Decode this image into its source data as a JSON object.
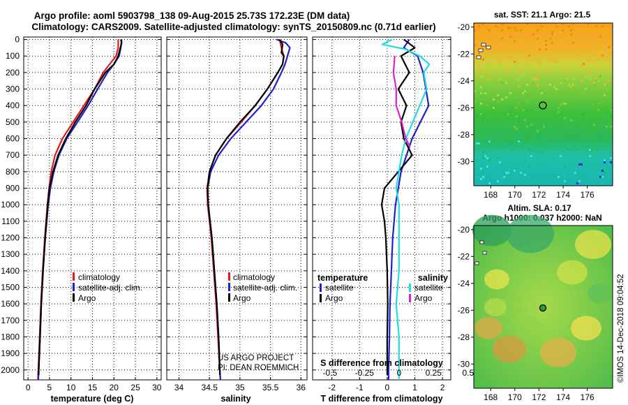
{
  "header": {
    "line1": "Argo profile: aoml 5903798_138 09-Aug-2015 25.73S 172.23E (DM data)",
    "line2": "Climatology: CARS2009. Satellite-adjusted climatology: synTS_20150809.nc (0.71d earlier)"
  },
  "depth_ticks": [
    "0",
    "100",
    "200",
    "300",
    "400",
    "500",
    "600",
    "700",
    "800",
    "900",
    "1000",
    "1100",
    "1200",
    "1300",
    "1400",
    "1500",
    "1600",
    "1700",
    "1800",
    "1900",
    "2000"
  ],
  "colors": {
    "climatology": "#e41a1c",
    "satellite": "#1f1fd0",
    "argo": "#000000",
    "sat_salinity": "#22dde0",
    "argo_salinity": "#e020d0"
  },
  "chart_data": [
    {
      "type": "line",
      "xlabel": "temperature (deg C)",
      "ylabel": "",
      "xlim": [
        -1,
        31
      ],
      "ylim": [
        2060,
        -15
      ],
      "xticks": [
        "0",
        "5",
        "10",
        "15",
        "20",
        "25",
        "30"
      ],
      "legend": [
        {
          "label": "climatology",
          "color": "#e41a1c"
        },
        {
          "label": "satellite-adj. clim.",
          "color": "#1f1fd0"
        },
        {
          "label": "Argo",
          "color": "#000000"
        }
      ],
      "series": [
        {
          "name": "climatology",
          "color": "#e41a1c",
          "depth": [
            0,
            50,
            100,
            150,
            200,
            300,
            400,
            500,
            600,
            700,
            800,
            900,
            1000,
            1200,
            1400,
            1600,
            1800,
            2000,
            2060
          ],
          "values": [
            21.0,
            21.0,
            20.5,
            19.0,
            17.5,
            15.5,
            13.0,
            10.5,
            8.0,
            6.3,
            5.4,
            4.9,
            4.5,
            3.9,
            3.4,
            3.0,
            2.7,
            2.4,
            2.3
          ]
        },
        {
          "name": "satellite-adj. clim.",
          "color": "#1f1fd0",
          "depth": [
            0,
            50,
            100,
            150,
            200,
            300,
            400,
            500,
            600,
            700,
            800,
            900,
            1000,
            1200,
            1400,
            1600,
            1800,
            2000,
            2060
          ],
          "values": [
            21.8,
            21.6,
            21.2,
            20.0,
            18.5,
            16.2,
            14.0,
            11.5,
            9.0,
            7.2,
            6.0,
            5.2,
            4.7,
            4.0,
            3.5,
            3.1,
            2.8,
            2.5,
            2.4
          ]
        },
        {
          "name": "Argo",
          "color": "#000000",
          "depth": [
            0,
            20,
            50,
            100,
            150,
            200,
            300,
            400,
            500,
            600,
            700,
            800,
            900,
            1000,
            1200,
            1400,
            1600,
            1800,
            2000,
            2030
          ],
          "values": [
            21.6,
            21.8,
            21.5,
            21.0,
            20.0,
            18.0,
            15.5,
            13.5,
            11.0,
            8.8,
            7.0,
            5.8,
            5.0,
            4.6,
            4.0,
            3.5,
            3.1,
            2.8,
            2.5,
            2.5
          ]
        }
      ]
    },
    {
      "type": "line",
      "xlabel": "salinity",
      "ylabel": "",
      "xlim": [
        33.8,
        36.1
      ],
      "ylim": [
        2060,
        -15
      ],
      "xticks": [
        "34",
        "34.5",
        "35",
        "35.5",
        "36"
      ],
      "legend": [
        {
          "label": "climatology",
          "color": "#e41a1c"
        },
        {
          "label": "satellite-adj. clim.",
          "color": "#1f1fd0"
        },
        {
          "label": "Argo",
          "color": "#000000"
        }
      ],
      "annotations": [
        "US ARGO PROJECT",
        "PI: DEAN ROEMMICH"
      ],
      "series": [
        {
          "name": "climatology",
          "color": "#e41a1c",
          "depth": [
            0,
            50,
            100,
            150,
            200,
            300,
            400,
            500,
            600,
            700,
            800,
            900,
            1000,
            1100,
            1200,
            1400,
            1600,
            1800,
            2000,
            2060
          ],
          "values": [
            35.65,
            35.68,
            35.72,
            35.7,
            35.62,
            35.45,
            35.25,
            35.02,
            34.78,
            34.6,
            34.5,
            34.46,
            34.47,
            34.5,
            34.53,
            34.57,
            34.61,
            34.64,
            34.67,
            34.68
          ]
        },
        {
          "name": "satellite-adj. clim.",
          "color": "#1f1fd0",
          "depth": [
            0,
            20,
            50,
            100,
            150,
            200,
            300,
            400,
            500,
            600,
            700,
            800,
            900,
            1000,
            1100,
            1200,
            1400,
            1600,
            1800,
            2000,
            2060
          ],
          "values": [
            35.6,
            35.75,
            35.82,
            35.78,
            35.74,
            35.68,
            35.55,
            35.35,
            35.1,
            34.85,
            34.65,
            34.52,
            34.47,
            34.48,
            34.51,
            34.54,
            34.58,
            34.62,
            34.65,
            34.67,
            34.68
          ]
        },
        {
          "name": "Argo",
          "color": "#000000",
          "depth": [
            0,
            30,
            80,
            100,
            150,
            200,
            300,
            400,
            500,
            600,
            700,
            800,
            900,
            1000,
            1100,
            1200,
            1400,
            1600,
            1800,
            2000,
            2030
          ],
          "values": [
            35.65,
            35.7,
            35.68,
            35.72,
            35.7,
            35.62,
            35.45,
            35.25,
            35.0,
            34.78,
            34.6,
            34.5,
            34.47,
            34.48,
            34.51,
            34.54,
            34.58,
            34.62,
            34.65,
            34.67,
            34.67
          ]
        }
      ]
    },
    {
      "type": "line",
      "xlabel": "T difference from climatology",
      "ylabel": "",
      "xlim": [
        -2.7,
        2.3
      ],
      "ylim": [
        2060,
        -15
      ],
      "xticks": [
        "-2",
        "-1",
        "0",
        "1",
        "2"
      ],
      "top_xlabel": "S difference from climatology",
      "top_xticks": [
        "-0.5",
        "-0.25",
        "0",
        "0.25",
        "0.5"
      ],
      "legend_temperature": {
        "title": "temperature",
        "items": [
          {
            "label": "satellite",
            "color": "#1f1fd0"
          },
          {
            "label": "Argo",
            "color": "#000000"
          }
        ]
      },
      "legend_salinity": {
        "title": "salinity",
        "items": [
          {
            "label": "satellite",
            "color": "#22dde0"
          },
          {
            "label": "Argo",
            "color": "#e020d0"
          }
        ]
      },
      "series": [
        {
          "name": "satellite",
          "color": "#1f1fd0",
          "depth": [
            0,
            50,
            100,
            200,
            300,
            400,
            500,
            600,
            700,
            800,
            900,
            1000,
            1100,
            1200,
            1400,
            1600,
            1800,
            2000,
            2060
          ],
          "values": [
            0.8,
            0.6,
            1.1,
            1.3,
            1.4,
            1.5,
            1.2,
            0.9,
            0.7,
            0.5,
            0.4,
            0.3,
            0.25,
            0.2,
            0.15,
            0.1,
            0.08,
            0.05,
            0.05
          ]
        },
        {
          "name": "Argo",
          "color": "#000000",
          "depth": [
            0,
            50,
            100,
            200,
            300,
            400,
            500,
            600,
            700,
            800,
            900,
            1000,
            1100,
            1200,
            1400,
            1600,
            1800,
            2000,
            2030
          ],
          "values": [
            0.6,
            1.0,
            0.5,
            0.8,
            0.4,
            0.7,
            0.5,
            0.6,
            0.9,
            0.4,
            -0.1,
            -0.2,
            -0.1,
            -0.05,
            0.0,
            0.02,
            0.0,
            0.0,
            0.0
          ]
        },
        {
          "name": "satellite (salinity)",
          "color": "#22dde0",
          "depth": [
            0,
            30,
            60,
            100,
            150,
            200,
            300,
            400,
            500,
            600,
            700,
            800,
            900,
            1000,
            1200,
            1400,
            1600,
            1800,
            2000,
            2060
          ],
          "values": [
            -0.05,
            -0.12,
            0.05,
            0.15,
            0.22,
            0.18,
            0.2,
            0.15,
            0.1,
            0.05,
            0.02,
            0.0,
            -0.02,
            0.0,
            0.0,
            0.0,
            -0.02,
            0.0,
            0.0,
            0.0
          ]
        },
        {
          "name": "Argo (salinity)",
          "color": "#e020d0",
          "depth": [
            100,
            200,
            300,
            400,
            500,
            600,
            650
          ],
          "values": [
            -0.03,
            -0.04,
            -0.02,
            -0.02,
            0.02,
            0.05,
            0.08
          ]
        }
      ]
    }
  ],
  "maps": {
    "sst": {
      "label": "sat. SST: 21.1 Argo: 21.5",
      "yticks": [
        "-20",
        "-22",
        "-24",
        "-26",
        "-28",
        "-30"
      ],
      "xticks": [
        "168",
        "170",
        "172",
        "174",
        "176"
      ]
    },
    "sla": {
      "label1": "Altim. SLA: 0.17",
      "label2": "Argo h1000: 0.037 h2000: NaN",
      "yticks": [
        "-20",
        "-22",
        "-24",
        "-26",
        "-28",
        "-30"
      ],
      "xticks": [
        "168",
        "170",
        "172",
        "174",
        "176"
      ]
    },
    "credit": "©IMOS 14-Dec-2018 09:04:52"
  }
}
